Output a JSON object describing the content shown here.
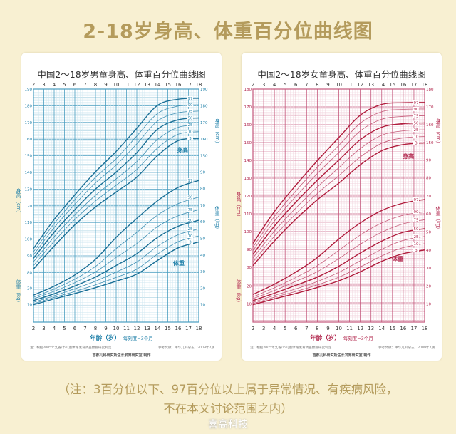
{
  "page_title": "2-18岁身高、体重百分位曲线图",
  "note_line1": "（注：3百分位以下、97百分位以上属于异常情况、有疾病风险，",
  "note_line2": "不在本文讨论范围之内）",
  "watermark": "喜高科技",
  "colors": {
    "background": "#f8f0d2",
    "title": "#b49b5c",
    "boy": "#1e7fa8",
    "girl": "#b2284e"
  },
  "chart_data": [
    {
      "type": "line",
      "title": "中国2～18岁男童身高、体重百分位曲线图",
      "xlabel": "年龄（岁）",
      "xlabel_note": "每刻度=3个月",
      "ylabel_height": "身高（cm）",
      "ylabel_weight": "体重（kg）",
      "height_curve_label": "身高",
      "weight_curve_label": "体重",
      "footnote_left": "注：根据2005年九省/市儿童体格发育调查数据研究制定",
      "footnote_right": "参考文献：中华儿科杂志，2009年7期",
      "credit": "首都儿科研究所生长发育研究室 制作",
      "x_ticks": [
        2,
        3,
        4,
        5,
        6,
        7,
        8,
        9,
        10,
        11,
        12,
        13,
        14,
        15,
        16,
        17,
        18
      ],
      "xlim": [
        2,
        18
      ],
      "height_ylim": [
        80,
        190
      ],
      "height_ticks_left": [
        80,
        90,
        100,
        110,
        120,
        130,
        140,
        150,
        160,
        170,
        180,
        190
      ],
      "height_ticks_right": [
        150,
        160,
        170,
        180,
        190
      ],
      "weight_ticks_left": [
        10,
        20
      ],
      "weight_ticks_right": [
        10,
        20,
        30,
        40,
        50,
        60,
        70,
        80,
        90
      ],
      "grid": true,
      "x": [
        2,
        4,
        6,
        8,
        10,
        12,
        14,
        16,
        18
      ],
      "height_series": [
        {
          "name": "3",
          "values": [
            82.1,
            95.8,
            108.6,
            119.3,
            128.3,
            137.2,
            150.1,
            159.1,
            160.5
          ]
        },
        {
          "name": "10",
          "values": [
            84.1,
            98.7,
            111.8,
            122.9,
            132.3,
            141.8,
            154.6,
            162.9,
            164.5
          ]
        },
        {
          "name": "25",
          "values": [
            86.4,
            101.4,
            114.6,
            126.3,
            136.1,
            146.5,
            159.8,
            167.1,
            168.6
          ]
        },
        {
          "name": "50",
          "values": [
            88.5,
            104.1,
            117.7,
            130.0,
            140.2,
            151.9,
            165.9,
            171.6,
            172.7
          ]
        },
        {
          "name": "75",
          "values": [
            90.5,
            106.9,
            120.9,
            133.7,
            144.4,
            157.2,
            170.8,
            175.8,
            176.8
          ]
        },
        {
          "name": "90",
          "values": [
            92.4,
            109.3,
            123.7,
            137.1,
            148.2,
            161.9,
            175.3,
            179.8,
            180.6
          ]
        },
        {
          "name": "97",
          "values": [
            94.4,
            111.8,
            126.6,
            140.4,
            152.6,
            166.5,
            180.2,
            183.9,
            184.5
          ]
        }
      ],
      "weight_series": [
        {
          "name": "3",
          "values": [
            10.0,
            13.5,
            16.8,
            20.3,
            24.2,
            28.5,
            36.7,
            44.3,
            47.8
          ]
        },
        {
          "name": "10",
          "values": [
            10.6,
            14.4,
            18.0,
            22.0,
            26.5,
            31.5,
            40.5,
            48.0,
            51.5
          ]
        },
        {
          "name": "25",
          "values": [
            11.5,
            15.4,
            19.6,
            24.2,
            29.7,
            35.8,
            45.2,
            52.2,
            55.7
          ]
        },
        {
          "name": "50",
          "values": [
            12.5,
            16.6,
            21.3,
            26.7,
            33.7,
            40.8,
            50.5,
            57.3,
            60.9
          ]
        },
        {
          "name": "75",
          "values": [
            13.5,
            18.1,
            23.3,
            29.8,
            38.5,
            46.9,
            57.0,
            63.6,
            67.3
          ]
        },
        {
          "name": "90",
          "values": [
            14.5,
            19.5,
            25.4,
            33.1,
            43.8,
            53.6,
            64.0,
            70.9,
            74.8
          ]
        },
        {
          "name": "97",
          "values": [
            15.8,
            21.2,
            28.0,
            37.4,
            50.6,
            62.0,
            72.6,
            80.7,
            84.9
          ]
        }
      ]
    },
    {
      "type": "line",
      "title": "中国2～18岁女童身高、体重百分位曲线图",
      "xlabel": "年龄（岁）",
      "xlabel_note": "每刻度=3个月",
      "ylabel_height": "身高（cm）",
      "ylabel_weight": "体重（kg）",
      "height_curve_label": "身高",
      "weight_curve_label": "体重",
      "footnote_left": "注：根据2005年九省/市儿童体格发育调查数据研究制定",
      "footnote_right": "参考文献：中华儿科杂志，2009年7期",
      "credit": "首都儿科研究所生长发育研究室 制作",
      "x_ticks": [
        2,
        3,
        4,
        5,
        6,
        7,
        8,
        9,
        10,
        11,
        12,
        13,
        14,
        15,
        16,
        17,
        18
      ],
      "xlim": [
        2,
        18
      ],
      "height_ylim": [
        80,
        180
      ],
      "height_ticks_left": [
        80,
        90,
        100,
        110,
        120,
        130,
        140,
        150,
        160,
        170,
        180
      ],
      "height_ticks_right": [
        150,
        160,
        170,
        180
      ],
      "weight_ticks_left": [
        10,
        20
      ],
      "weight_ticks_right": [
        10,
        20,
        30,
        40,
        50,
        60,
        70,
        80,
        90
      ],
      "grid": true,
      "x": [
        2,
        4,
        6,
        8,
        10,
        12,
        14,
        16,
        18
      ],
      "height_series": [
        {
          "name": "3",
          "values": [
            80.9,
            94.7,
            107.0,
            117.9,
            127.2,
            137.5,
            145.4,
            148.9,
            149.8
          ]
        },
        {
          "name": "10",
          "values": [
            82.9,
            97.4,
            110.0,
            121.4,
            131.4,
            141.9,
            149.6,
            152.6,
            153.4
          ]
        },
        {
          "name": "25",
          "values": [
            85.2,
            100.2,
            113.3,
            125.0,
            135.9,
            146.6,
            154.1,
            156.6,
            157.2
          ]
        },
        {
          "name": "50",
          "values": [
            87.2,
            103.1,
            116.6,
            128.8,
            140.1,
            151.6,
            158.6,
            160.6,
            161.0
          ]
        },
        {
          "name": "75",
          "values": [
            89.3,
            105.9,
            119.8,
            132.6,
            144.4,
            156.5,
            163.1,
            164.7,
            165.0
          ]
        },
        {
          "name": "90",
          "values": [
            91.3,
            108.5,
            122.9,
            136.1,
            148.4,
            160.8,
            167.3,
            168.6,
            168.8
          ]
        },
        {
          "name": "97",
          "values": [
            93.4,
            111.3,
            126.1,
            139.8,
            152.8,
            165.3,
            171.4,
            172.3,
            172.5
          ]
        }
      ],
      "weight_series": [
        {
          "name": "3",
          "values": [
            9.6,
            12.9,
            15.9,
            19.2,
            22.9,
            27.9,
            33.7,
            38.0,
            40.0
          ]
        },
        {
          "name": "10",
          "values": [
            10.2,
            13.8,
            17.0,
            20.6,
            24.9,
            30.6,
            36.7,
            41.3,
            43.5
          ]
        },
        {
          "name": "25",
          "values": [
            11.0,
            14.8,
            18.4,
            22.5,
            27.6,
            34.0,
            40.4,
            45.3,
            47.5
          ]
        },
        {
          "name": "50",
          "values": [
            11.9,
            16.0,
            20.4,
            25.0,
            31.0,
            38.3,
            44.9,
            49.8,
            51.8
          ]
        },
        {
          "name": "75",
          "values": [
            13.0,
            17.5,
            22.6,
            28.0,
            35.2,
            43.2,
            49.9,
            54.5,
            56.8
          ]
        },
        {
          "name": "90",
          "values": [
            14.0,
            19.0,
            24.8,
            31.3,
            39.8,
            48.3,
            55.0,
            59.3,
            61.2
          ]
        },
        {
          "name": "97",
          "values": [
            15.3,
            21.0,
            27.8,
            35.8,
            46.1,
            55.0,
            61.9,
            66.0,
            68.0
          ]
        }
      ]
    }
  ]
}
